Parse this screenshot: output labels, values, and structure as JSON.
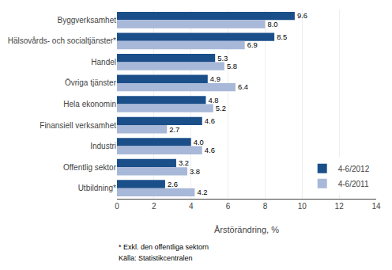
{
  "chart_data": {
    "type": "bar",
    "orientation": "horizontal",
    "categories": [
      "Byggverksamhet",
      "Hälsovårds- och socialtjänster*",
      "Handel",
      "Övriga tjänster",
      "Hela ekonomin",
      "Finansiell verksamhet",
      "Industri",
      "Offentlig sektor",
      "Utbildning*"
    ],
    "series": [
      {
        "name": "4-6/2012",
        "color": "#1B4F8A",
        "values": [
          9.6,
          8.5,
          5.3,
          4.9,
          4.8,
          4.6,
          4.0,
          3.2,
          2.6
        ]
      },
      {
        "name": "4-6/2011",
        "color": "#A8B8D8",
        "values": [
          8.0,
          6.9,
          5.8,
          6.4,
          5.2,
          2.7,
          4.6,
          3.8,
          4.2
        ]
      }
    ],
    "xlabel": "Årstörändring, %",
    "xlim": [
      0,
      14
    ],
    "xticks": [
      0,
      2,
      4,
      6,
      8,
      10,
      12,
      14
    ],
    "data_labels": true,
    "grid": true,
    "legend": "lower right",
    "annotations": [
      "* Exkl. den offentliga sektorn",
      "Källa: Statistikcentralen"
    ]
  }
}
